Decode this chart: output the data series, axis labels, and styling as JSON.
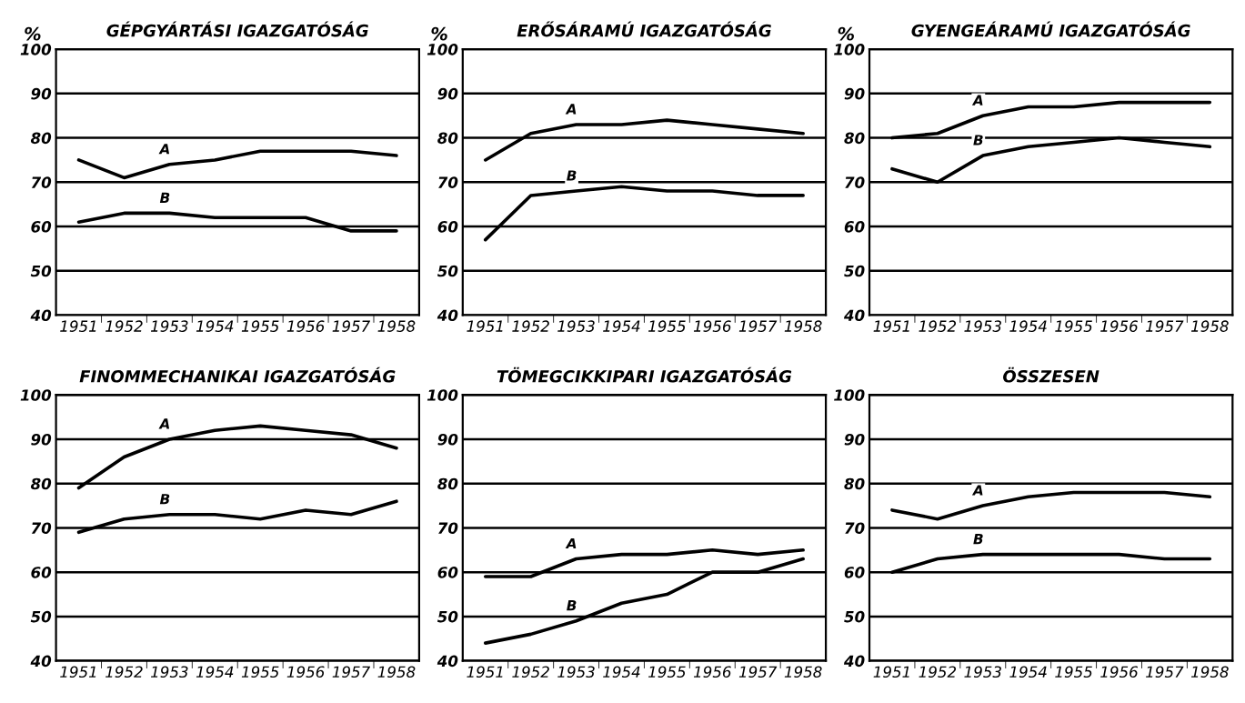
{
  "chart_data": [
    {
      "type": "line",
      "title": "GÉPGYÁRTÁSI IGAZGATÓSÁG",
      "ylabel": "%",
      "categories": [
        "1951",
        "1952",
        "1953",
        "1954",
        "1955",
        "1956",
        "1957",
        "1958"
      ],
      "ylim": [
        40,
        100
      ],
      "yticks": [
        40,
        50,
        60,
        70,
        80,
        90,
        100
      ],
      "grid": "y",
      "legend": false,
      "marker": "none",
      "series": [
        {
          "name": "A",
          "color": "#000000",
          "values": [
            75,
            71,
            74,
            75,
            77,
            77,
            77,
            76
          ]
        },
        {
          "name": "B",
          "color": "#000000",
          "values": [
            61,
            63,
            63,
            62,
            62,
            62,
            59,
            59
          ]
        }
      ]
    },
    {
      "type": "line",
      "title": "ERŐSÁRAMÚ IGAZGATÓSÁG",
      "ylabel": "%",
      "categories": [
        "1951",
        "1952",
        "1953",
        "1954",
        "1955",
        "1956",
        "1957",
        "1958"
      ],
      "ylim": [
        40,
        100
      ],
      "yticks": [
        40,
        50,
        60,
        70,
        80,
        90,
        100
      ],
      "grid": "y",
      "legend": false,
      "marker": "none",
      "series": [
        {
          "name": "A",
          "color": "#000000",
          "values": [
            75,
            81,
            83,
            83,
            84,
            83,
            82,
            81
          ]
        },
        {
          "name": "B",
          "color": "#000000",
          "values": [
            57,
            67,
            68,
            69,
            68,
            68,
            67,
            67
          ]
        }
      ]
    },
    {
      "type": "line",
      "title": "GYENGEÁRAMÚ IGAZGATÓSÁG",
      "ylabel": "%",
      "categories": [
        "1951",
        "1952",
        "1953",
        "1954",
        "1955",
        "1956",
        "1957",
        "1958"
      ],
      "ylim": [
        40,
        100
      ],
      "yticks": [
        40,
        50,
        60,
        70,
        80,
        90,
        100
      ],
      "grid": "y",
      "legend": false,
      "marker": "none",
      "series": [
        {
          "name": "A",
          "color": "#000000",
          "values": [
            80,
            81,
            85,
            87,
            87,
            88,
            88,
            88
          ]
        },
        {
          "name": "B",
          "color": "#000000",
          "values": [
            73,
            70,
            76,
            78,
            79,
            80,
            79,
            78
          ]
        }
      ]
    },
    {
      "type": "line",
      "title": "FINOMMECHANIKAI IGAZGATÓSÁG",
      "categories": [
        "1951",
        "1952",
        "1953",
        "1954",
        "1955",
        "1956",
        "1957",
        "1958"
      ],
      "ylim": [
        40,
        100
      ],
      "yticks": [
        40,
        50,
        60,
        70,
        80,
        90,
        100
      ],
      "grid": "y",
      "legend": false,
      "marker": "none",
      "series": [
        {
          "name": "A",
          "color": "#000000",
          "values": [
            79,
            86,
            90,
            92,
            93,
            92,
            91,
            88
          ]
        },
        {
          "name": "B",
          "color": "#000000",
          "values": [
            69,
            72,
            73,
            73,
            72,
            74,
            73,
            76
          ]
        }
      ]
    },
    {
      "type": "line",
      "title": "TÖMEGCIKKIPARI IGAZGATÓSÁG",
      "categories": [
        "1951",
        "1952",
        "1953",
        "1954",
        "1955",
        "1956",
        "1957",
        "1958"
      ],
      "ylim": [
        40,
        100
      ],
      "yticks": [
        40,
        50,
        60,
        70,
        80,
        90,
        100
      ],
      "grid": "y",
      "legend": false,
      "marker": "none",
      "series": [
        {
          "name": "A",
          "color": "#000000",
          "values": [
            59,
            59,
            63,
            64,
            64,
            65,
            64,
            65
          ]
        },
        {
          "name": "B",
          "color": "#000000",
          "values": [
            44,
            46,
            49,
            53,
            55,
            60,
            60,
            63
          ]
        }
      ]
    },
    {
      "type": "line",
      "title": "ÖSSZESEN",
      "categories": [
        "1951",
        "1952",
        "1953",
        "1954",
        "1955",
        "1956",
        "1957",
        "1958"
      ],
      "ylim": [
        40,
        100
      ],
      "yticks": [
        40,
        50,
        60,
        70,
        80,
        90,
        100
      ],
      "grid": "y",
      "legend": false,
      "marker": "none",
      "series": [
        {
          "name": "A",
          "color": "#000000",
          "values": [
            74,
            72,
            75,
            77,
            78,
            78,
            78,
            77
          ]
        },
        {
          "name": "B",
          "color": "#000000",
          "values": [
            60,
            63,
            64,
            64,
            64,
            64,
            63,
            63
          ]
        }
      ]
    }
  ]
}
